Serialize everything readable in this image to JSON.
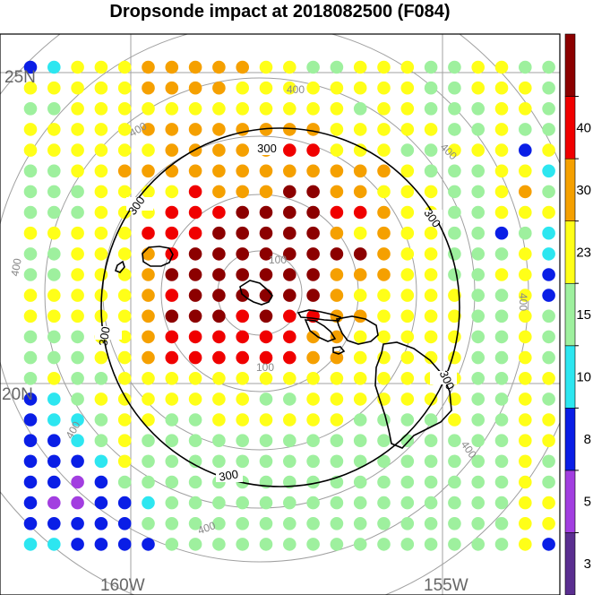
{
  "title": "Dropsonde impact at 2018082500 (F084)",
  "axes": {
    "lat_labels": [
      "25N",
      "20N"
    ],
    "lon_labels": [
      "160W",
      "155W"
    ]
  },
  "colorbar": {
    "tick_labels": [
      "3",
      "5",
      "8",
      "10",
      "15",
      "23",
      "30",
      "40"
    ],
    "colors": [
      "#5a2e90",
      "#a23ee0",
      "#0a1ee6",
      "#2de6f0",
      "#9ef09e",
      "#ffff18",
      "#f5a000",
      "#f00000",
      "#8c0000"
    ],
    "top_color": "#8c0000"
  },
  "contours": {
    "solid_label": "300",
    "gray_labels": [
      "100",
      "400"
    ]
  },
  "colors": {
    "coast": "#000000",
    "grid": "#a0a0a0",
    "frame": "#000000"
  },
  "chart_data": {
    "type": "heatmap",
    "title": "Dropsonde impact at 2018082500 (F084)",
    "colorbar_levels": [
      3,
      5,
      8,
      10,
      15,
      23,
      30,
      40
    ],
    "legend": "right colorbar",
    "rows": [
      "bcyyyoooooyyggyyyggyygg",
      "yyyyyooooyyyyyyyyggyyyg",
      "ggyyyyyyyyyyyygyygggyyg",
      "yyyyyooooooooyyyyyggygg",
      "yyyyyyooooorryyyggyyyby",
      "ggyyooooooooooooygggyyc",
      "gggyyyyroooddooyyyggyog",
      "gggyyyrrrddddrroyyggyyy",
      "yyyyyrrrdddddoyoyyggbgc",
      "ggyyyorddddddddoyygggyc",
      "ggyyyodddddddoooyyggyyb",
      "yyyyyorddddddoyyyyyggyb",
      "yyyyyodddrdrrooyyyyggyg",
      "gggyyorrrrrrooyyyyyggyg",
      "gggyyorrrrrrooyyyyyggyg",
      "gyggyyyyyyyyyyyyyyyggyy",
      "bcgyyyyyyyggyyyyyyyggyg",
      "bccgyyggyyyyyyggggyggyy",
      "bbcgyggggggggggggggggyy",
      "bbbcyggggggggggggggggyg",
      "bbpbgggggggggggggggggyg",
      "bppbbcgggggggggggggggyy",
      "bbbbbggggggggggggggggyy",
      "ccbbbbgggggggggggggggyb"
    ]
  }
}
